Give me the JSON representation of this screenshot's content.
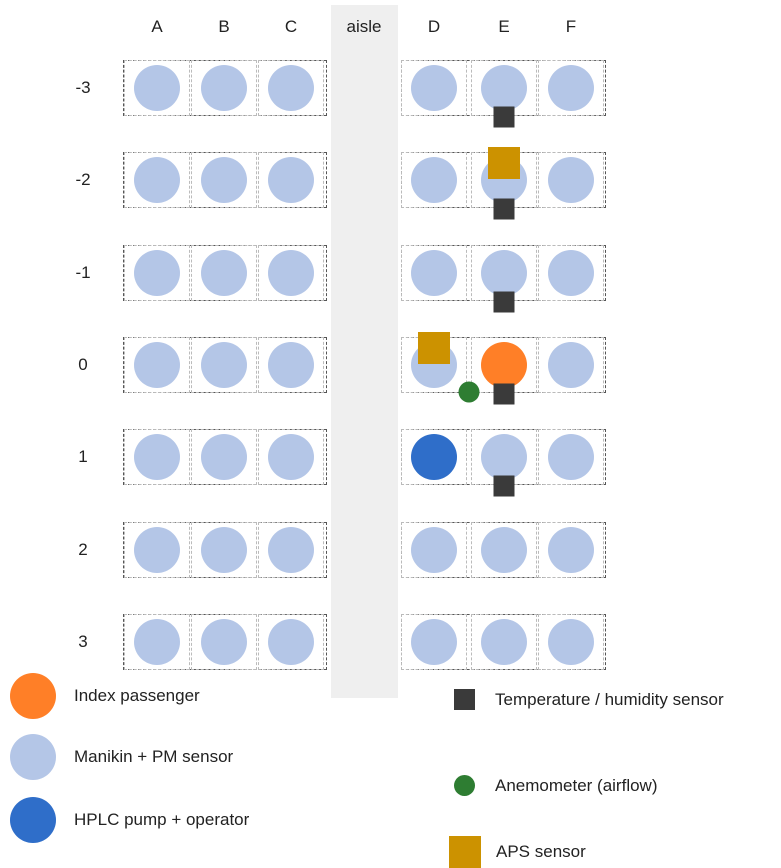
{
  "diagram": {
    "columns": [
      {
        "label": "A",
        "side": "left",
        "slot": 0
      },
      {
        "label": "B",
        "side": "left",
        "slot": 1
      },
      {
        "label": "C",
        "side": "left",
        "slot": 2
      },
      {
        "label": "D",
        "side": "right",
        "slot": 0
      },
      {
        "label": "E",
        "side": "right",
        "slot": 1
      },
      {
        "label": "F",
        "side": "right",
        "slot": 2
      }
    ],
    "aisle_label": "aisle",
    "rows": [
      "-3",
      "-2",
      "-1",
      "0",
      "1",
      "2",
      "3"
    ],
    "seat_colors": {
      "manikin": "#b4c6e7",
      "index": "#ff7f27",
      "pump": "#2f6ec9"
    },
    "special_seats": [
      {
        "row": "0",
        "col": "E",
        "type": "index"
      },
      {
        "row": "1",
        "col": "D",
        "type": "pump"
      }
    ],
    "sensors": [
      {
        "type": "th",
        "row": "-3",
        "col": "E",
        "place": "below"
      },
      {
        "type": "aps",
        "row": "-2",
        "col": "E",
        "place": "above"
      },
      {
        "type": "th",
        "row": "-2",
        "col": "E",
        "place": "below"
      },
      {
        "type": "th",
        "row": "-1",
        "col": "E",
        "place": "below"
      },
      {
        "type": "aps",
        "row": "0",
        "col": "D",
        "place": "above"
      },
      {
        "type": "anemometer",
        "row": "0",
        "col": "D-E",
        "place": "between-below"
      },
      {
        "type": "th",
        "row": "0",
        "col": "E",
        "place": "below"
      },
      {
        "type": "th",
        "row": "1",
        "col": "E",
        "place": "below"
      }
    ]
  },
  "legend": {
    "index_passenger": "Index passenger",
    "manikin": "Manikin + PM sensor",
    "hplc": "HPLC pump + operator",
    "th_sensor": "Temperature / humidity sensor",
    "anemometer": "Anemometer (airflow)",
    "aps": "APS sensor",
    "colors": {
      "index": "#ff7f27",
      "manikin": "#b4c6e7",
      "hplc": "#2f6ec9",
      "th": "#3a3a3a",
      "anemometer": "#2e7d32",
      "aps": "#cc9200"
    }
  }
}
